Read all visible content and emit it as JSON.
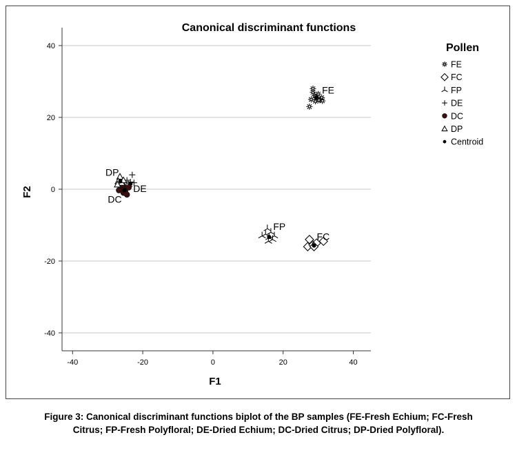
{
  "chart_data": {
    "type": "scatter",
    "title": "Canonical discriminant functions",
    "xlabel": "F1",
    "ylabel": "F2",
    "xlim": [
      -43,
      45
    ],
    "ylim": [
      -45,
      45
    ],
    "xticks": [
      -40,
      -20,
      0,
      20,
      40
    ],
    "yticks": [
      40,
      20,
      0,
      -20,
      -40
    ],
    "grid": "horizontal",
    "legend": {
      "title": "Pollen",
      "position": "right",
      "entries": [
        {
          "label": "FE",
          "marker": "asterisk"
        },
        {
          "label": "FC",
          "marker": "diamond"
        },
        {
          "label": "FP",
          "marker": "tri-branch"
        },
        {
          "label": "DE",
          "marker": "plus"
        },
        {
          "label": "DC",
          "marker": "dot"
        },
        {
          "label": "DP",
          "marker": "triangle"
        },
        {
          "label": "Centroid",
          "marker": "centroid"
        }
      ]
    },
    "series": [
      {
        "name": "FE",
        "marker": "asterisk",
        "label": "FE",
        "points": [
          [
            27.5,
            23
          ],
          [
            28,
            25
          ],
          [
            28.5,
            27
          ],
          [
            29,
            26
          ],
          [
            29.5,
            25.5
          ],
          [
            30,
            26.5
          ],
          [
            30.5,
            25
          ],
          [
            31,
            25.5
          ],
          [
            28.5,
            28
          ],
          [
            29.2,
            24.5
          ],
          [
            30.2,
            24.8
          ],
          [
            31.2,
            24.6
          ]
        ],
        "centroid": [
          29.5,
          25.5
        ]
      },
      {
        "name": "FC",
        "marker": "diamond",
        "label": "FC",
        "points": [
          [
            27.5,
            -14
          ],
          [
            27,
            -16
          ],
          [
            28.5,
            -15.5
          ],
          [
            29.5,
            -15
          ],
          [
            31.5,
            -14.5
          ],
          [
            28.8,
            -16
          ]
        ],
        "centroid": [
          28.8,
          -15.7
        ]
      },
      {
        "name": "FP",
        "marker": "tri-branch",
        "label": "FP",
        "points": [
          [
            14,
            -13
          ],
          [
            15,
            -12.5
          ],
          [
            15.5,
            -11
          ],
          [
            16,
            -13.5
          ],
          [
            16.5,
            -12
          ],
          [
            17,
            -14
          ],
          [
            15.8,
            -14.5
          ],
          [
            17.5,
            -13
          ]
        ],
        "centroid": [
          16,
          -13.3
        ]
      },
      {
        "name": "DE",
        "marker": "plus",
        "label": "DE",
        "points": [
          [
            -23,
            4
          ],
          [
            -23.5,
            2
          ],
          [
            -24,
            1.5
          ],
          [
            -22.5,
            1.8
          ],
          [
            -24.5,
            2.5
          ],
          [
            -23.8,
            0.8
          ]
        ],
        "centroid": [
          -23.5,
          1.5
        ]
      },
      {
        "name": "DC",
        "marker": "dot",
        "label": "DC",
        "points": [
          [
            -26,
            0
          ],
          [
            -25.5,
            -1
          ],
          [
            -25,
            0.5
          ],
          [
            -24.5,
            -1.5
          ],
          [
            -26.5,
            1
          ],
          [
            -25,
            -0.5
          ],
          [
            -24,
            0.5
          ],
          [
            -25.8,
            1.2
          ],
          [
            -26.8,
            -0.3
          ],
          [
            -24.8,
            -1.2
          ]
        ],
        "centroid": [
          -25.2,
          -0.3
        ]
      },
      {
        "name": "DP",
        "marker": "triangle",
        "label": "DP",
        "points": [
          [
            -26.5,
            3.5
          ],
          [
            -27,
            2.2
          ],
          [
            -26,
            1.8
          ],
          [
            -25.5,
            2.5
          ],
          [
            -27.2,
            1.3
          ]
        ],
        "centroid": [
          -26.4,
          2.2
        ]
      }
    ]
  },
  "caption": {
    "line1": "Figure 3: Canonical discriminant functions biplot of the BP samples (FE-Fresh Echium; FC-Fresh",
    "line2": "Citrus; FP-Fresh Polyfloral; DE-Dried Echium; DC-Dried Citrus; DP-Dried Polyfloral)."
  }
}
